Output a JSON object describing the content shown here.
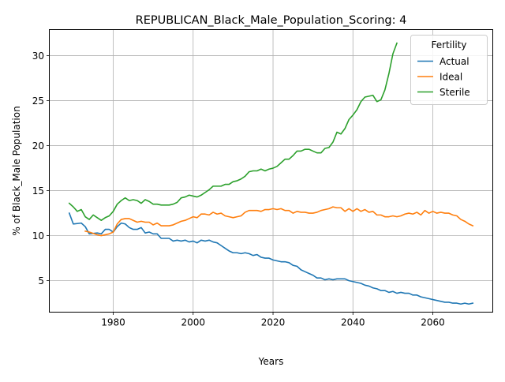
{
  "chart_data": {
    "type": "line",
    "title": "REPUBLICAN_Black_Male_Population_Scoring: 4",
    "xlabel": "Years",
    "ylabel": "% of Black_Male Population",
    "xlim": [
      1964,
      2075
    ],
    "ylim": [
      1.5,
      32.9
    ],
    "xticks": [
      1980,
      2000,
      2020,
      2040,
      2060
    ],
    "yticks": [
      5,
      10,
      15,
      20,
      25,
      30
    ],
    "grid": true,
    "legend": {
      "title": "Fertility",
      "placement": "top-right"
    },
    "series": [
      {
        "name": "Actual",
        "color": "#1f77b4",
        "points": [
          [
            1969,
            12.5
          ],
          [
            1970,
            11.3
          ],
          [
            1972,
            11.4
          ],
          [
            1973,
            11.0
          ],
          [
            1974,
            10.2
          ],
          [
            1976,
            10.3
          ],
          [
            1977,
            10.2
          ],
          [
            1978,
            10.7
          ],
          [
            1979,
            10.7
          ],
          [
            1980,
            10.4
          ],
          [
            1981,
            11.0
          ],
          [
            1982,
            11.4
          ],
          [
            1983,
            11.3
          ],
          [
            1984,
            10.9
          ],
          [
            1985,
            10.7
          ],
          [
            1986,
            10.7
          ],
          [
            1987,
            10.9
          ],
          [
            1988,
            10.3
          ],
          [
            1989,
            10.4
          ],
          [
            1990,
            10.2
          ],
          [
            1991,
            10.2
          ],
          [
            1992,
            9.7
          ],
          [
            1994,
            9.7
          ],
          [
            1995,
            9.4
          ],
          [
            1996,
            9.5
          ],
          [
            1997,
            9.4
          ],
          [
            1998,
            9.5
          ],
          [
            1999,
            9.3
          ],
          [
            2000,
            9.4
          ],
          [
            2001,
            9.2
          ],
          [
            2002,
            9.5
          ],
          [
            2003,
            9.4
          ],
          [
            2004,
            9.5
          ],
          [
            2005,
            9.3
          ],
          [
            2006,
            9.2
          ],
          [
            2007,
            8.9
          ],
          [
            2008,
            8.6
          ],
          [
            2009,
            8.3
          ],
          [
            2010,
            8.1
          ],
          [
            2011,
            8.1
          ],
          [
            2012,
            8.0
          ],
          [
            2013,
            8.1
          ],
          [
            2014,
            8.0
          ],
          [
            2015,
            7.8
          ],
          [
            2016,
            7.9
          ],
          [
            2017,
            7.6
          ],
          [
            2018,
            7.5
          ],
          [
            2019,
            7.5
          ],
          [
            2020,
            7.3
          ],
          [
            2021,
            7.2
          ],
          [
            2022,
            7.1
          ],
          [
            2023,
            7.1
          ],
          [
            2024,
            7.0
          ],
          [
            2025,
            6.7
          ],
          [
            2026,
            6.6
          ],
          [
            2027,
            6.2
          ],
          [
            2028,
            6.0
          ],
          [
            2029,
            5.8
          ],
          [
            2030,
            5.6
          ],
          [
            2031,
            5.3
          ],
          [
            2032,
            5.3
          ],
          [
            2033,
            5.1
          ],
          [
            2034,
            5.2
          ],
          [
            2035,
            5.1
          ],
          [
            2036,
            5.2
          ],
          [
            2037,
            5.2
          ],
          [
            2038,
            5.2
          ],
          [
            2039,
            5.0
          ],
          [
            2040,
            4.9
          ],
          [
            2041,
            4.8
          ],
          [
            2042,
            4.7
          ],
          [
            2043,
            4.5
          ],
          [
            2044,
            4.4
          ],
          [
            2045,
            4.2
          ],
          [
            2046,
            4.1
          ],
          [
            2047,
            3.9
          ],
          [
            2048,
            3.9
          ],
          [
            2049,
            3.7
          ],
          [
            2050,
            3.8
          ],
          [
            2051,
            3.6
          ],
          [
            2052,
            3.7
          ],
          [
            2053,
            3.6
          ],
          [
            2054,
            3.6
          ],
          [
            2055,
            3.4
          ],
          [
            2056,
            3.4
          ],
          [
            2057,
            3.2
          ],
          [
            2058,
            3.1
          ],
          [
            2059,
            3.0
          ],
          [
            2060,
            2.9
          ],
          [
            2061,
            2.8
          ],
          [
            2062,
            2.7
          ],
          [
            2063,
            2.6
          ],
          [
            2064,
            2.6
          ],
          [
            2065,
            2.5
          ],
          [
            2066,
            2.5
          ],
          [
            2067,
            2.4
          ],
          [
            2068,
            2.5
          ],
          [
            2069,
            2.4
          ],
          [
            2070,
            2.5
          ]
        ]
      },
      {
        "name": "Ideal",
        "color": "#ff7f0e",
        "points": [
          [
            1973,
            10.5
          ],
          [
            1974,
            10.4
          ],
          [
            1976,
            10.1
          ],
          [
            1977,
            10.0
          ],
          [
            1978,
            10.1
          ],
          [
            1979,
            10.2
          ],
          [
            1980,
            10.4
          ],
          [
            1981,
            11.3
          ],
          [
            1982,
            11.8
          ],
          [
            1983,
            11.9
          ],
          [
            1984,
            11.9
          ],
          [
            1985,
            11.7
          ],
          [
            1986,
            11.5
          ],
          [
            1987,
            11.6
          ],
          [
            1988,
            11.5
          ],
          [
            1989,
            11.5
          ],
          [
            1990,
            11.2
          ],
          [
            1991,
            11.4
          ],
          [
            1992,
            11.1
          ],
          [
            1993,
            11.1
          ],
          [
            1994,
            11.1
          ],
          [
            1995,
            11.2
          ],
          [
            1996,
            11.4
          ],
          [
            1997,
            11.6
          ],
          [
            1998,
            11.7
          ],
          [
            1999,
            11.9
          ],
          [
            2000,
            12.1
          ],
          [
            2001,
            12.0
          ],
          [
            2002,
            12.4
          ],
          [
            2003,
            12.4
          ],
          [
            2004,
            12.3
          ],
          [
            2005,
            12.6
          ],
          [
            2006,
            12.4
          ],
          [
            2007,
            12.5
          ],
          [
            2008,
            12.2
          ],
          [
            2009,
            12.1
          ],
          [
            2010,
            12.0
          ],
          [
            2011,
            12.1
          ],
          [
            2012,
            12.2
          ],
          [
            2013,
            12.6
          ],
          [
            2014,
            12.8
          ],
          [
            2015,
            12.8
          ],
          [
            2016,
            12.8
          ],
          [
            2017,
            12.7
          ],
          [
            2018,
            12.9
          ],
          [
            2019,
            12.9
          ],
          [
            2020,
            13.0
          ],
          [
            2021,
            12.9
          ],
          [
            2022,
            13.0
          ],
          [
            2023,
            12.8
          ],
          [
            2024,
            12.8
          ],
          [
            2025,
            12.5
          ],
          [
            2026,
            12.7
          ],
          [
            2027,
            12.6
          ],
          [
            2028,
            12.6
          ],
          [
            2029,
            12.5
          ],
          [
            2030,
            12.5
          ],
          [
            2031,
            12.6
          ],
          [
            2032,
            12.8
          ],
          [
            2033,
            12.9
          ],
          [
            2034,
            13.0
          ],
          [
            2035,
            13.2
          ],
          [
            2036,
            13.1
          ],
          [
            2037,
            13.1
          ],
          [
            2038,
            12.7
          ],
          [
            2039,
            13.0
          ],
          [
            2040,
            12.7
          ],
          [
            2041,
            13.0
          ],
          [
            2042,
            12.7
          ],
          [
            2043,
            12.9
          ],
          [
            2044,
            12.6
          ],
          [
            2045,
            12.7
          ],
          [
            2046,
            12.3
          ],
          [
            2047,
            12.3
          ],
          [
            2048,
            12.1
          ],
          [
            2049,
            12.1
          ],
          [
            2050,
            12.2
          ],
          [
            2051,
            12.1
          ],
          [
            2052,
            12.2
          ],
          [
            2053,
            12.4
          ],
          [
            2054,
            12.5
          ],
          [
            2055,
            12.4
          ],
          [
            2056,
            12.6
          ],
          [
            2057,
            12.3
          ],
          [
            2058,
            12.8
          ],
          [
            2059,
            12.5
          ],
          [
            2060,
            12.7
          ],
          [
            2061,
            12.5
          ],
          [
            2062,
            12.6
          ],
          [
            2063,
            12.5
          ],
          [
            2064,
            12.5
          ],
          [
            2065,
            12.3
          ],
          [
            2066,
            12.2
          ],
          [
            2067,
            11.8
          ],
          [
            2068,
            11.6
          ],
          [
            2069,
            11.3
          ],
          [
            2070,
            11.1
          ]
        ]
      },
      {
        "name": "Sterile",
        "color": "#2ca02c",
        "points": [
          [
            1969,
            13.6
          ],
          [
            1970,
            13.2
          ],
          [
            1971,
            12.7
          ],
          [
            1972,
            12.9
          ],
          [
            1973,
            12.1
          ],
          [
            1974,
            11.8
          ],
          [
            1975,
            12.3
          ],
          [
            1976,
            12.0
          ],
          [
            1977,
            11.7
          ],
          [
            1978,
            12.0
          ],
          [
            1979,
            12.2
          ],
          [
            1980,
            12.7
          ],
          [
            1981,
            13.5
          ],
          [
            1982,
            13.9
          ],
          [
            1983,
            14.2
          ],
          [
            1984,
            13.9
          ],
          [
            1985,
            14.0
          ],
          [
            1986,
            13.9
          ],
          [
            1987,
            13.6
          ],
          [
            1988,
            14.0
          ],
          [
            1989,
            13.8
          ],
          [
            1990,
            13.5
          ],
          [
            1991,
            13.5
          ],
          [
            1992,
            13.4
          ],
          [
            1993,
            13.4
          ],
          [
            1994,
            13.4
          ],
          [
            1995,
            13.5
          ],
          [
            1996,
            13.7
          ],
          [
            1997,
            14.2
          ],
          [
            1998,
            14.3
          ],
          [
            1999,
            14.5
          ],
          [
            2000,
            14.4
          ],
          [
            2001,
            14.3
          ],
          [
            2002,
            14.5
          ],
          [
            2003,
            14.8
          ],
          [
            2004,
            15.1
          ],
          [
            2005,
            15.5
          ],
          [
            2006,
            15.5
          ],
          [
            2007,
            15.5
          ],
          [
            2008,
            15.7
          ],
          [
            2009,
            15.7
          ],
          [
            2010,
            16.0
          ],
          [
            2011,
            16.1
          ],
          [
            2012,
            16.3
          ],
          [
            2013,
            16.6
          ],
          [
            2014,
            17.1
          ],
          [
            2015,
            17.2
          ],
          [
            2016,
            17.2
          ],
          [
            2017,
            17.4
          ],
          [
            2018,
            17.2
          ],
          [
            2019,
            17.4
          ],
          [
            2020,
            17.5
          ],
          [
            2021,
            17.7
          ],
          [
            2022,
            18.1
          ],
          [
            2023,
            18.5
          ],
          [
            2024,
            18.5
          ],
          [
            2025,
            18.9
          ],
          [
            2026,
            19.4
          ],
          [
            2027,
            19.4
          ],
          [
            2028,
            19.6
          ],
          [
            2029,
            19.6
          ],
          [
            2030,
            19.4
          ],
          [
            2031,
            19.2
          ],
          [
            2032,
            19.2
          ],
          [
            2033,
            19.7
          ],
          [
            2034,
            19.8
          ],
          [
            2035,
            20.4
          ],
          [
            2036,
            21.5
          ],
          [
            2037,
            21.3
          ],
          [
            2038,
            21.9
          ],
          [
            2039,
            22.9
          ],
          [
            2040,
            23.4
          ],
          [
            2041,
            24.0
          ],
          [
            2042,
            24.9
          ],
          [
            2043,
            25.4
          ],
          [
            2044,
            25.5
          ],
          [
            2045,
            25.6
          ],
          [
            2046,
            24.9
          ],
          [
            2047,
            25.1
          ],
          [
            2048,
            26.2
          ],
          [
            2049,
            28.0
          ],
          [
            2050,
            30.2
          ],
          [
            2051,
            31.4
          ]
        ]
      }
    ]
  }
}
